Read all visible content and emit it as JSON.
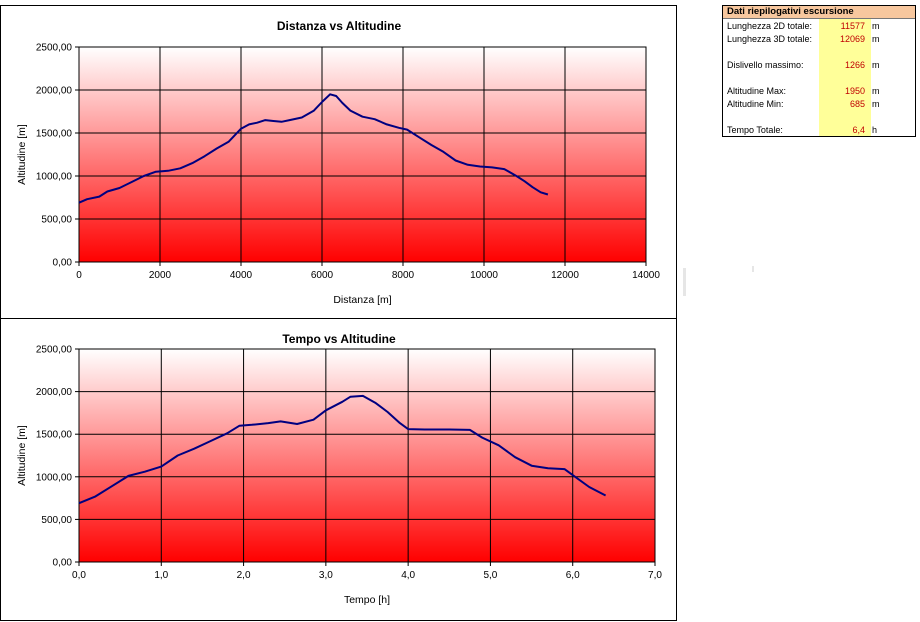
{
  "charts": [
    {
      "id": "distance",
      "chart_data": {
        "type": "line",
        "title": "Distanza vs Altitudine",
        "xlabel": "Distanza [m]",
        "ylabel": "Altitudine [m]",
        "xlim": [
          0,
          14000
        ],
        "ylim": [
          0,
          2500
        ],
        "xticks": [
          0,
          2000,
          4000,
          6000,
          8000,
          10000,
          12000,
          14000
        ],
        "xtick_labels": [
          "0",
          "2000",
          "4000",
          "6000",
          "8000",
          "10000",
          "12000",
          "14000"
        ],
        "yticks": [
          0,
          500,
          1000,
          1500,
          2000,
          2500
        ],
        "ytick_labels": [
          "0,00",
          "500,00",
          "1000,00",
          "1500,00",
          "2000,00",
          "2500,00"
        ],
        "grid": true,
        "line_color": "#000080",
        "x": [
          0,
          200,
          500,
          700,
          1000,
          1300,
          1600,
          1900,
          2200,
          2500,
          2800,
          3100,
          3400,
          3700,
          4000,
          4200,
          4400,
          4600,
          4800,
          5000,
          5200,
          5500,
          5800,
          6000,
          6200,
          6350,
          6500,
          6700,
          7000,
          7300,
          7600,
          7900,
          8100,
          8400,
          8700,
          9000,
          9300,
          9600,
          9900,
          10200,
          10500,
          10800,
          11000,
          11200,
          11400,
          11577
        ],
        "y": [
          690,
          730,
          760,
          820,
          860,
          930,
          1000,
          1050,
          1060,
          1090,
          1150,
          1230,
          1320,
          1400,
          1550,
          1600,
          1620,
          1650,
          1640,
          1630,
          1650,
          1680,
          1760,
          1860,
          1950,
          1930,
          1850,
          1760,
          1690,
          1660,
          1600,
          1560,
          1540,
          1450,
          1360,
          1280,
          1180,
          1130,
          1110,
          1100,
          1080,
          1000,
          940,
          870,
          810,
          785
        ]
      }
    },
    {
      "id": "time",
      "chart_data": {
        "type": "line",
        "title": "Tempo vs Altitudine",
        "xlabel": "Tempo [h]",
        "ylabel": "Altitudine [m]",
        "xlim": [
          0,
          7
        ],
        "ylim": [
          0,
          2500
        ],
        "xticks": [
          0,
          1,
          2,
          3,
          4,
          5,
          6,
          7
        ],
        "xtick_labels": [
          "0,0",
          "1,0",
          "2,0",
          "3,0",
          "4,0",
          "5,0",
          "6,0",
          "7,0"
        ],
        "yticks": [
          0,
          500,
          1000,
          1500,
          2000,
          2500
        ],
        "ytick_labels": [
          "0,00",
          "500,00",
          "1000,00",
          "1500,00",
          "2000,00",
          "2500,00"
        ],
        "grid": true,
        "line_color": "#000080",
        "x": [
          0.0,
          0.2,
          0.4,
          0.6,
          0.8,
          1.0,
          1.2,
          1.4,
          1.6,
          1.8,
          1.95,
          2.1,
          2.3,
          2.45,
          2.65,
          2.85,
          3.0,
          3.2,
          3.3,
          3.45,
          3.6,
          3.75,
          3.9,
          4.0,
          4.2,
          4.5,
          4.75,
          4.9,
          5.1,
          5.3,
          5.5,
          5.7,
          5.9,
          6.0,
          6.2,
          6.4
        ],
        "y": [
          690,
          770,
          890,
          1010,
          1060,
          1120,
          1250,
          1330,
          1420,
          1510,
          1600,
          1610,
          1630,
          1650,
          1620,
          1670,
          1780,
          1880,
          1940,
          1950,
          1870,
          1760,
          1630,
          1560,
          1555,
          1555,
          1550,
          1460,
          1370,
          1230,
          1130,
          1100,
          1090,
          1020,
          880,
          780
        ]
      }
    }
  ],
  "summary": {
    "title": "Dati riepilogativi escursione",
    "rows": [
      {
        "label": "Lunghezza 2D totale:",
        "value": "11577",
        "unit": "m"
      },
      {
        "label": "Lunghezza 3D totale:",
        "value": "12069",
        "unit": "m"
      },
      {
        "label": "Dislivello massimo:",
        "value": "1266",
        "unit": "m"
      },
      {
        "label": "Altitudine Max:",
        "value": "1950",
        "unit": "m"
      },
      {
        "label": "Altitudine Min:",
        "value": "685",
        "unit": "m"
      },
      {
        "label": "Tempo Totale:",
        "value": "6,4",
        "unit": "h"
      }
    ]
  }
}
